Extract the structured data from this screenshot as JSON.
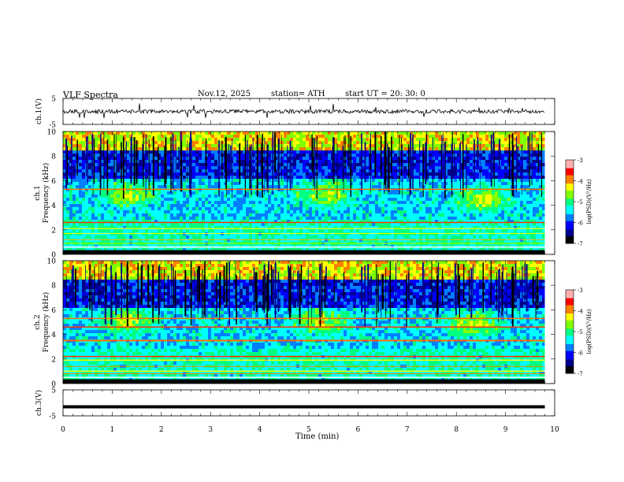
{
  "header": {
    "title": "VLF  Spectra",
    "date": "Nov.12, 2025",
    "station": "station= ATH",
    "start": "start  UT  =    20: 30: 0"
  },
  "chart_data": [
    {
      "type": "line",
      "name": "ch1-waveform",
      "ylabel": "ch.1(V)",
      "ylim": [
        -5,
        5
      ],
      "yticks": [
        "5",
        "-5"
      ],
      "color": "#000000"
    },
    {
      "type": "heatmap",
      "name": "ch1-spectrogram",
      "ylabel": "ch.1\nFrequency  (kHz)",
      "ylabel_line1": "ch.1",
      "ylabel_line2": "Frequency  (kHz)",
      "ylim": [
        0,
        10
      ],
      "yticks": [
        "0",
        "2",
        "4",
        "6",
        "8",
        "10"
      ],
      "hiss_patches_min": [
        1.3,
        5.3
      ],
      "colorbar": {
        "label": "log(PSD)(V²/Hz)",
        "ticks": [
          "-3",
          "-4",
          "-5",
          "-6",
          "-7"
        ]
      }
    },
    {
      "type": "heatmap",
      "name": "ch2-spectrogram",
      "ylabel_line1": "ch.2",
      "ylabel_line2": "Frequency  (kHz)",
      "ylim": [
        0,
        10
      ],
      "yticks": [
        "0",
        "2",
        "4",
        "6",
        "8",
        "10"
      ],
      "colorbar": {
        "label": "log(PSD)(V²/Hz)",
        "ticks": [
          "-3",
          "-4",
          "-5",
          "-6",
          "-7"
        ]
      }
    },
    {
      "type": "line",
      "name": "ch3-waveform",
      "ylabel": "ch.3(V)",
      "ylim": [
        -5,
        5
      ],
      "yticks": [
        "5",
        "-5"
      ],
      "values_constant": -1.5,
      "color": "#000000"
    }
  ],
  "xaxis": {
    "label": "Time  (min)",
    "ticks": [
      "0",
      "1",
      "2",
      "3",
      "4",
      "5",
      "6",
      "7",
      "8",
      "9",
      "10"
    ],
    "xlim": [
      0,
      10
    ],
    "data_end_min": 9.8
  },
  "colors": {
    "colormap": [
      "#000000",
      "#00008c",
      "#0000ff",
      "#0080ff",
      "#00ffff",
      "#00ff80",
      "#80ff00",
      "#ffff00",
      "#ff8000",
      "#ff0000",
      "#ffb0b0"
    ]
  }
}
